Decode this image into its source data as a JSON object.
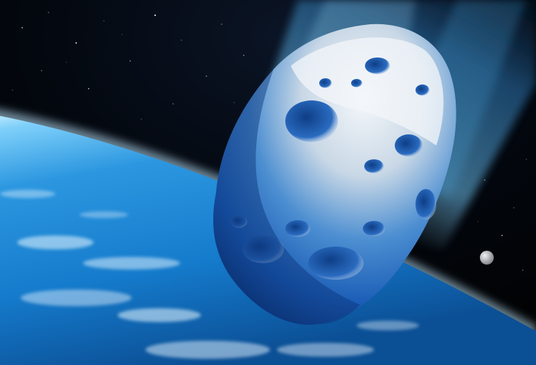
{
  "scene": {
    "subjects": [
      "asteroid",
      "earth",
      "moon",
      "stars"
    ],
    "colors": {
      "space": "#020509",
      "ocean": "#1e8ad8",
      "atmosphere": "#bfe8ff",
      "asteroid_light": "#e7eef5",
      "asteroid_shadow": "#0d3d86",
      "trail": "#64b8ea",
      "moon": "#c8cbd0"
    }
  }
}
